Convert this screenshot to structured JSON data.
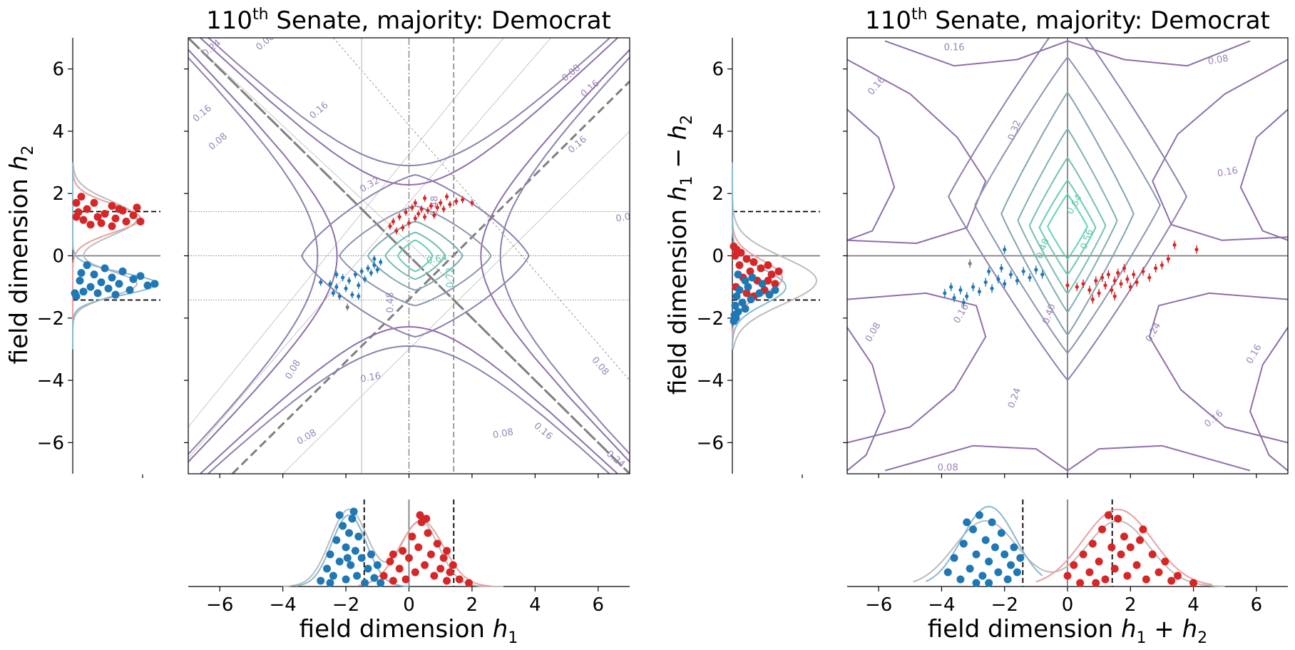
{
  "chart_data": [
    {
      "type": "scatter",
      "panel": "left-main",
      "title_prefix": "110",
      "title_superscript": "th",
      "title_suffix": " Senate, majority: Democrat",
      "xlabel": "",
      "ylabel": "",
      "xlim": [
        -7,
        7
      ],
      "ylim": [
        -7,
        7
      ],
      "contour_levels": [
        "0.08",
        "0.16",
        "0.24",
        "0.32",
        "0.48",
        "0.64",
        "0.72"
      ],
      "dashed_lines_x": [
        -1.42,
        1.42
      ],
      "dotted_lines_y": [
        1.42,
        0,
        -1.42
      ],
      "series": [
        {
          "color": "#d62728",
          "points": [
            [
              -0.5,
              1.1
            ],
            [
              -0.3,
              1.25
            ],
            [
              -0.2,
              0.9
            ],
            [
              -0.1,
              1.4
            ],
            [
              0.0,
              1.05
            ],
            [
              0.1,
              1.55
            ],
            [
              0.2,
              1.2
            ],
            [
              0.3,
              1.35
            ],
            [
              0.4,
              1.5
            ],
            [
              0.5,
              1.25
            ],
            [
              0.6,
              1.45
            ],
            [
              0.7,
              1.6
            ],
            [
              0.8,
              1.3
            ],
            [
              0.9,
              1.55
            ],
            [
              1.0,
              1.7
            ],
            [
              1.1,
              1.5
            ],
            [
              1.3,
              1.65
            ],
            [
              1.5,
              1.75
            ],
            [
              1.7,
              1.8
            ],
            [
              2.0,
              1.7
            ],
            [
              -0.6,
              0.95
            ],
            [
              -0.4,
              0.8
            ],
            [
              0.2,
              1.7
            ],
            [
              0.5,
              1.85
            ],
            [
              1.2,
              1.9
            ]
          ]
        },
        {
          "color": "#1f77b4",
          "points": [
            [
              -2.8,
              -0.85
            ],
            [
              -2.5,
              -0.9
            ],
            [
              -2.4,
              -1.2
            ],
            [
              -2.3,
              -1.0
            ],
            [
              -2.2,
              -1.3
            ],
            [
              -2.1,
              -0.7
            ],
            [
              -2.0,
              -1.05
            ],
            [
              -1.9,
              -0.8
            ],
            [
              -1.8,
              -1.25
            ],
            [
              -1.7,
              -0.6
            ],
            [
              -1.6,
              -0.95
            ],
            [
              -1.5,
              -0.5
            ],
            [
              -1.4,
              -0.75
            ],
            [
              -1.3,
              -0.4
            ],
            [
              -1.2,
              -0.55
            ],
            [
              -1.1,
              -0.3
            ],
            [
              -1.0,
              -0.45
            ],
            [
              -0.9,
              -0.2
            ],
            [
              -1.6,
              -1.3
            ],
            [
              -2.3,
              -0.6
            ],
            [
              -1.1,
              -0.1
            ]
          ]
        },
        {
          "color": "#7f7f7f",
          "points": [
            [
              -1.95,
              -1.65
            ]
          ]
        }
      ]
    },
    {
      "type": "scatter",
      "panel": "right-main",
      "title_prefix": "110",
      "title_superscript": "th",
      "title_suffix": " Senate, majority: Democrat",
      "xlabel": "",
      "ylabel": "",
      "xlim": [
        -7,
        7
      ],
      "ylim": [
        -7,
        7
      ],
      "contour_levels": [
        "0.08",
        "0.16",
        "0.24",
        "0.32",
        "0.40",
        "0.48",
        "0.56",
        "0.64"
      ],
      "series": [
        {
          "color": "#d62728",
          "points": [
            [
              0.0,
              -0.95
            ],
            [
              0.3,
              -1.0
            ],
            [
              0.5,
              -0.9
            ],
            [
              0.7,
              -1.1
            ],
            [
              0.9,
              -0.8
            ],
            [
              1.0,
              -1.2
            ],
            [
              1.1,
              -0.7
            ],
            [
              1.2,
              -0.95
            ],
            [
              1.3,
              -0.6
            ],
            [
              1.4,
              -1.1
            ],
            [
              1.5,
              -0.8
            ],
            [
              1.6,
              -0.55
            ],
            [
              1.7,
              -0.9
            ],
            [
              1.8,
              -0.4
            ],
            [
              1.9,
              -0.75
            ],
            [
              2.0,
              -1.0
            ],
            [
              2.1,
              -0.6
            ],
            [
              2.2,
              -0.85
            ],
            [
              2.4,
              -0.5
            ],
            [
              2.6,
              -0.7
            ],
            [
              2.8,
              -0.4
            ],
            [
              3.0,
              -0.3
            ],
            [
              3.2,
              -0.1
            ],
            [
              3.4,
              0.35
            ],
            [
              4.1,
              0.2
            ],
            [
              0.8,
              -1.4
            ],
            [
              1.5,
              -1.3
            ]
          ]
        },
        {
          "color": "#1f77b4",
          "points": [
            [
              -3.9,
              -1.2
            ],
            [
              -3.6,
              -1.35
            ],
            [
              -3.4,
              -1.1
            ],
            [
              -3.2,
              -1.3
            ],
            [
              -3.0,
              -1.0
            ],
            [
              -2.8,
              -1.15
            ],
            [
              -2.6,
              -0.85
            ],
            [
              -2.4,
              -1.05
            ],
            [
              -2.2,
              -0.75
            ],
            [
              -2.0,
              -0.9
            ],
            [
              -1.8,
              -0.6
            ],
            [
              -1.6,
              -0.8
            ],
            [
              -1.4,
              -0.5
            ],
            [
              -1.2,
              -0.7
            ],
            [
              -1.0,
              -0.45
            ],
            [
              -0.8,
              -0.6
            ],
            [
              -3.3,
              -1.5
            ],
            [
              -2.5,
              -0.5
            ],
            [
              -2.1,
              -0.4
            ],
            [
              -3.7,
              -1.0
            ],
            [
              -2.0,
              0.2
            ]
          ]
        },
        {
          "color": "#7f7f7f",
          "points": [
            [
              -3.1,
              -0.25
            ]
          ]
        }
      ]
    },
    {
      "type": "scatter",
      "panel": "left-marginal-y",
      "ylabel_prefix": "field dimension ",
      "ylabel_var": "h",
      "ylabel_sub": "2",
      "y_ticks": [
        "6",
        "4",
        "2",
        "0",
        "−2",
        "−4",
        "−6"
      ],
      "ylim": [
        -7,
        7
      ],
      "dashed_lines_y": [
        1.42,
        -1.42
      ]
    },
    {
      "type": "scatter",
      "panel": "right-marginal-y",
      "ylabel_prefix": "field dimension ",
      "ylabel_var": "h",
      "ylabel_sub": "1",
      "ylabel_mid": " − ",
      "ylabel_var2": "h",
      "ylabel_sub2": "2",
      "y_ticks": [
        "6",
        "4",
        "2",
        "0",
        "−2",
        "−4",
        "−6"
      ],
      "ylim": [
        -7,
        7
      ],
      "dashed_lines_y": [
        1.42,
        -1.42
      ]
    },
    {
      "type": "scatter",
      "panel": "left-marginal-x",
      "xlabel_prefix": "field dimension ",
      "xlabel_var": "h",
      "xlabel_sub": "1",
      "x_ticks": [
        "−6",
        "−4",
        "−2",
        "0",
        "2",
        "4",
        "6"
      ],
      "xlim": [
        -7,
        7
      ],
      "dashed_lines_x": [
        -1.42,
        1.42
      ]
    },
    {
      "type": "scatter",
      "panel": "right-marginal-x",
      "xlabel_prefix": "field dimension ",
      "xlabel_var": "h",
      "xlabel_sub": "1",
      "xlabel_mid": " + ",
      "xlabel_var2": "h",
      "xlabel_sub2": "2",
      "x_ticks": [
        "−6",
        "−4",
        "−2",
        "0",
        "2",
        "4",
        "6"
      ],
      "xlim": [
        -7,
        7
      ],
      "dashed_lines_x": [
        -1.42,
        1.42
      ]
    }
  ]
}
